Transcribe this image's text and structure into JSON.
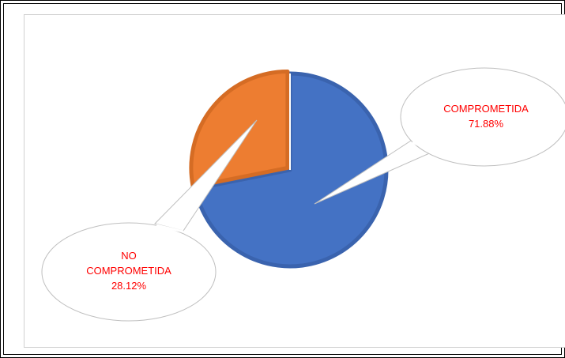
{
  "chart_data": {
    "type": "pie",
    "slices": [
      {
        "label": "COMPROMETIDA",
        "value": 71.88,
        "display": "71.88%",
        "color": "#4472C4"
      },
      {
        "label": "NO COMPROMETIDA",
        "value": 28.12,
        "display": "28.12%",
        "color": "#ED7D31"
      }
    ],
    "legend": "none",
    "label_color": "#FF0000"
  },
  "callouts": {
    "comprometida": {
      "line1": "COMPROMETIDA",
      "line2": "71.88%"
    },
    "no_comprometida": {
      "line1": "NO",
      "line2": "COMPROMETIDA",
      "line3": "28.12%"
    }
  }
}
